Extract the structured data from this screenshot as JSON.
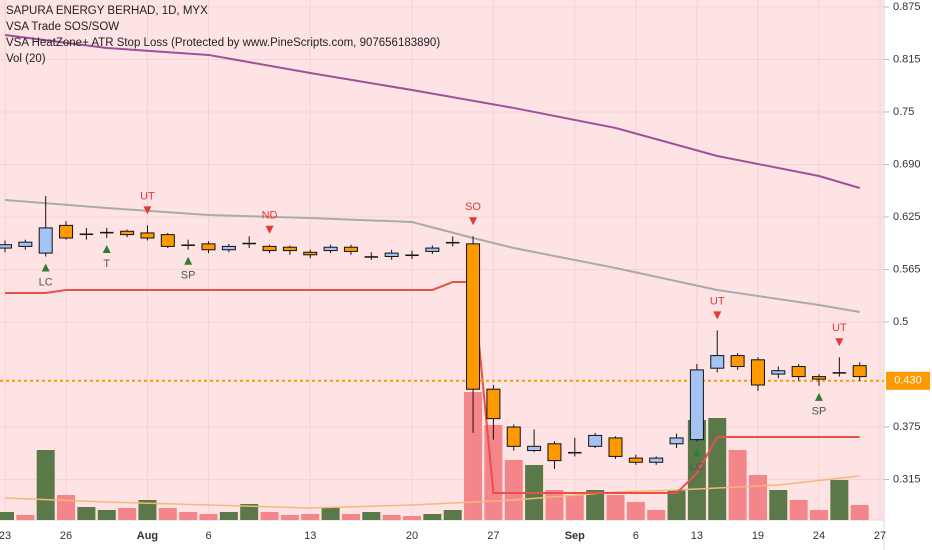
{
  "chart_data": {
    "type": "candlestick",
    "title": "SAPURA ENERGY BERHAD, 1D, MYX",
    "indicators": [
      "VSA Trade SOS/SOW",
      "VSA HeatZone+ ATR Stop Loss (Protected by www.PineScripts.com, 907656183890)",
      "Vol (20)"
    ],
    "categories": [
      "23",
      null,
      null,
      "26",
      null,
      null,
      null,
      "Aug",
      null,
      null,
      "6",
      null,
      null,
      null,
      null,
      "13",
      null,
      null,
      null,
      null,
      "20",
      null,
      null,
      null,
      "27",
      null,
      null,
      null,
      "Sep",
      null,
      null,
      "6",
      null,
      null,
      "13",
      null,
      null,
      "19",
      null,
      null,
      "24",
      null,
      null,
      "27"
    ],
    "open": [
      0.588,
      0.59,
      0.582,
      0.615,
      0.605,
      0.607,
      0.608,
      0.606,
      0.604,
      0.592,
      0.593,
      0.586,
      0.594,
      0.59,
      0.589,
      0.583,
      0.585,
      0.589,
      0.578,
      0.578,
      0.58,
      0.584,
      0.595,
      0.593,
      0.42,
      0.375,
      0.347,
      0.355,
      0.345,
      0.352,
      0.362,
      0.338,
      0.333,
      0.355,
      0.36,
      0.445,
      0.46,
      0.455,
      0.438,
      0.447,
      0.435,
      0.44,
      0.448,
      null
    ],
    "close": [
      0.592,
      0.595,
      0.612,
      0.6,
      0.605,
      0.607,
      0.604,
      0.6,
      0.59,
      0.592,
      0.586,
      0.59,
      0.594,
      0.585,
      0.585,
      0.58,
      0.589,
      0.584,
      0.578,
      0.582,
      0.58,
      0.588,
      0.595,
      0.42,
      0.385,
      0.352,
      0.352,
      0.335,
      0.345,
      0.365,
      0.34,
      0.333,
      0.338,
      0.362,
      0.443,
      0.46,
      0.447,
      0.425,
      0.442,
      0.435,
      0.432,
      0.44,
      0.435,
      null
    ],
    "high": [
      0.597,
      0.598,
      0.65,
      0.62,
      0.612,
      0.612,
      0.61,
      0.615,
      0.606,
      0.598,
      0.596,
      0.593,
      0.602,
      0.592,
      0.591,
      0.586,
      0.592,
      0.592,
      0.583,
      0.586,
      0.585,
      0.591,
      0.602,
      0.602,
      0.425,
      0.378,
      0.372,
      0.358,
      0.362,
      0.368,
      0.364,
      0.342,
      0.34,
      0.367,
      0.45,
      0.49,
      0.463,
      0.458,
      0.447,
      0.45,
      0.438,
      0.458,
      0.452,
      null
    ],
    "low": [
      0.583,
      0.586,
      0.578,
      0.598,
      0.598,
      0.6,
      0.601,
      0.597,
      0.588,
      0.586,
      0.582,
      0.583,
      0.588,
      0.582,
      0.58,
      0.576,
      0.582,
      0.58,
      0.574,
      0.574,
      0.575,
      0.581,
      0.59,
      0.368,
      0.36,
      0.347,
      0.345,
      0.325,
      0.34,
      0.35,
      0.337,
      0.33,
      0.33,
      0.35,
      0.358,
      0.44,
      0.443,
      0.418,
      0.433,
      0.43,
      0.424,
      0.435,
      0.43,
      null
    ],
    "up_color": "#a4c2f4",
    "down_color": "#ff9900",
    "volume": [
      8,
      5,
      70,
      25,
      13,
      10,
      12,
      20,
      12,
      8,
      6,
      8,
      16,
      8,
      5,
      6,
      12,
      6,
      8,
      5,
      4,
      6,
      10,
      128,
      95,
      60,
      55,
      30,
      25,
      30,
      25,
      18,
      10,
      30,
      100,
      102,
      70,
      45,
      30,
      20,
      10,
      40,
      15,
      null
    ],
    "volume_colors": [
      "#5b7848",
      "#f4868b",
      "#5b7848",
      "#f4868b",
      "#5b7848",
      "#5b7848",
      "#f4868b",
      "#5b7848",
      "#f4868b",
      "#f4868b",
      "#f4868b",
      "#5b7848",
      "#5b7848",
      "#f4868b",
      "#f4868b",
      "#f4868b",
      "#5b7848",
      "#f4868b",
      "#5b7848",
      "#f4868b",
      "#f4868b",
      "#5b7848",
      "#5b7848",
      "#f4868b",
      "#f4868b",
      "#f4868b",
      "#5b7848",
      "#f4868b",
      "#f4868b",
      "#5b7848",
      "#f4868b",
      "#f4868b",
      "#f4868b",
      "#5b7848",
      "#5b7848",
      "#5b7848",
      "#f4868b",
      "#f4868b",
      "#5b7848",
      "#f4868b",
      "#f4868b",
      "#5b7848",
      "#f4868b",
      null
    ],
    "volume_ma": {
      "color": "#f5b87a",
      "x": [
        0,
        5,
        10,
        15,
        20,
        25,
        30,
        33,
        38,
        42
      ],
      "values": [
        22,
        18,
        15,
        12,
        15,
        20,
        28,
        30,
        35,
        44
      ]
    },
    "lines": [
      {
        "color": "#a0509a",
        "x": [
          0,
          5,
          10,
          15,
          20,
          25,
          30,
          35,
          40,
          42
        ],
        "values": [
          0.8417,
          0.8262,
          0.8179,
          0.7964,
          0.7762,
          0.7548,
          0.731,
          0.6976,
          0.6738,
          0.6595
        ]
      },
      {
        "color": "#aaaaaa",
        "x": [
          0,
          5,
          10,
          15,
          20,
          23,
          25,
          30,
          35,
          40,
          42
        ],
        "values": [
          0.6452,
          0.6357,
          0.6274,
          0.6238,
          0.619,
          0.6,
          0.5881,
          0.5643,
          0.5381,
          0.5202,
          0.5119
        ]
      },
      {
        "color": "#e8504a",
        "x": [
          0,
          2,
          3,
          21,
          22,
          23,
          24,
          33,
          34,
          35,
          42
        ],
        "values": [
          0.5345,
          0.5345,
          0.5381,
          0.5381,
          0.5476,
          0.5476,
          0.2964,
          0.2964,
          0.32,
          0.3631,
          0.3631
        ]
      }
    ],
    "signals": [
      {
        "index": 2,
        "label": "LC",
        "position": "below"
      },
      {
        "index": 5,
        "label": "T",
        "position": "below"
      },
      {
        "index": 7,
        "label": "UT",
        "position": "above"
      },
      {
        "index": 9,
        "label": "SP",
        "position": "below"
      },
      {
        "index": 13,
        "label": "ND",
        "position": "above"
      },
      {
        "index": 23,
        "label": "SO",
        "position": "above"
      },
      {
        "index": 34,
        "label": "LC",
        "position": "below"
      },
      {
        "index": 35,
        "label": "UT",
        "position": "above"
      },
      {
        "index": 40,
        "label": "SP",
        "position": "below"
      },
      {
        "index": 41,
        "label": "UT",
        "position": "above"
      }
    ],
    "current_price": {
      "value": 0.43,
      "label": "0.430",
      "color": "#ff9900"
    },
    "ylim": [
      0.2643,
      0.8833
    ],
    "yticks": [
      0.875,
      {
        "value": 0.8125,
        "label": "0.815"
      },
      0.75,
      {
        "value": 0.6875,
        "label": "0.690"
      },
      0.625,
      {
        "value": 0.5625,
        "label": "0.565"
      },
      0.5,
      0.375,
      {
        "value": 0.3125,
        "label": "0.315"
      }
    ],
    "grid": true
  }
}
